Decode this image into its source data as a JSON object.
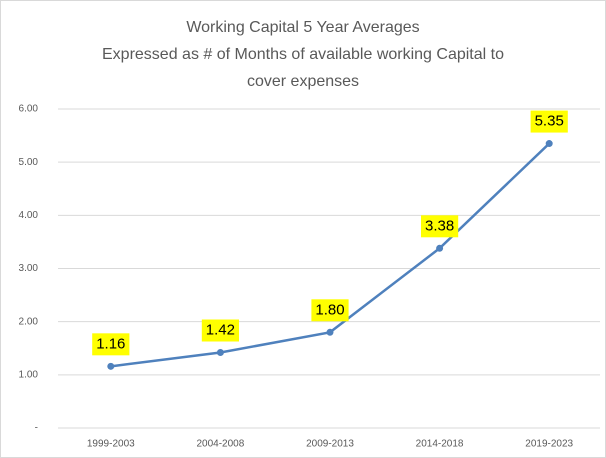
{
  "chart_data": {
    "type": "line",
    "title": [
      "Working Capital 5 Year Averages",
      "Expressed as # of Months of available working Capital to",
      "cover expenses"
    ],
    "categories": [
      "1999-2003",
      "2004-2008",
      "2009-2013",
      "2014-2018",
      "2019-2023"
    ],
    "values": [
      1.16,
      1.42,
      1.8,
      3.38,
      5.35
    ],
    "value_labels": [
      "1.16",
      "1.42",
      "1.80",
      "3.38",
      "5.35"
    ],
    "color": "#4f81bd",
    "ylim": [
      0,
      6
    ],
    "yticks": [
      {
        "value": 0,
        "label": "-"
      },
      {
        "value": 1,
        "label": "1.00"
      },
      {
        "value": 2,
        "label": "2.00"
      },
      {
        "value": 3,
        "label": "3.00"
      },
      {
        "value": 4,
        "label": "4.00"
      },
      {
        "value": 5,
        "label": "5.00"
      },
      {
        "value": 6,
        "label": "6.00"
      }
    ],
    "grid": true
  }
}
